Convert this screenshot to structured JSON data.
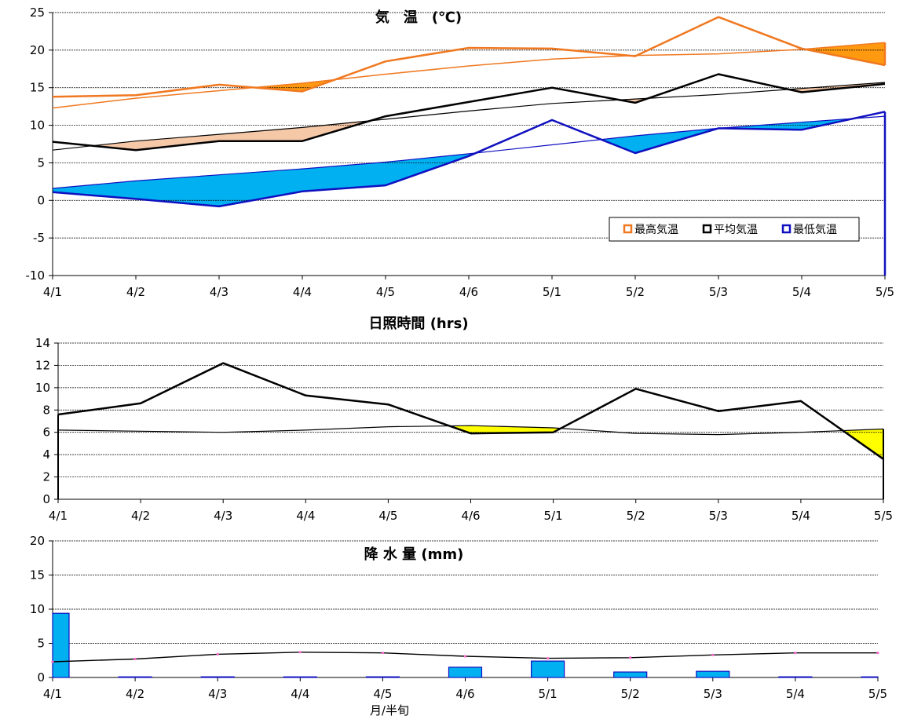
{
  "xaxis_label": "月/半旬",
  "chart_data": [
    {
      "type": "line",
      "title": "気　温　(℃)",
      "categories": [
        "4/1",
        "4/2",
        "4/3",
        "4/4",
        "4/5",
        "4/6",
        "5/1",
        "5/2",
        "5/3",
        "5/4",
        "5/5"
      ],
      "ylim": [
        -10,
        25
      ],
      "yticks": [
        25,
        20,
        15,
        10,
        5,
        0,
        -5,
        -10
      ],
      "grid": true,
      "legend_position": "bottom-right",
      "colors": {
        "max": "#f07820",
        "avg": "#000000",
        "min": "#1010c0",
        "max_fill": "#ff9a10",
        "avg_fill": "#f5c8a8",
        "min_fill": "#00b0f0"
      },
      "series": [
        {
          "name": "最高気温",
          "key": "max",
          "values": [
            13.8,
            14.0,
            15.4,
            14.5,
            18.5,
            20.3,
            20.2,
            19.2,
            24.4,
            20.2,
            18.0
          ]
        },
        {
          "name": "",
          "key": "max_normal",
          "values": [
            12.3,
            13.6,
            14.6,
            15.6,
            16.8,
            17.9,
            18.8,
            19.3,
            19.5,
            20.1,
            21.0
          ]
        },
        {
          "name": "平均気温",
          "key": "avg",
          "values": [
            7.8,
            6.7,
            7.9,
            7.9,
            11.2,
            13.1,
            15.0,
            13.0,
            16.8,
            14.4,
            15.5
          ]
        },
        {
          "name": "",
          "key": "avg_normal",
          "values": [
            6.7,
            7.9,
            8.8,
            9.7,
            10.8,
            11.9,
            12.9,
            13.5,
            14.1,
            14.9,
            15.7
          ]
        },
        {
          "name": "最低気温",
          "key": "min",
          "values": [
            1.1,
            0.2,
            -0.8,
            1.2,
            2.0,
            5.9,
            10.7,
            6.3,
            9.6,
            9.4,
            11.8
          ]
        },
        {
          "name": "",
          "key": "min_normal",
          "values": [
            1.6,
            2.6,
            3.4,
            4.2,
            5.1,
            6.2,
            7.4,
            8.6,
            9.6,
            10.4,
            11.2
          ]
        }
      ]
    },
    {
      "type": "line",
      "title": "日照時間 (hrs)",
      "categories": [
        "4/1",
        "4/2",
        "4/3",
        "4/4",
        "4/5",
        "4/6",
        "5/1",
        "5/2",
        "5/3",
        "5/4",
        "5/5"
      ],
      "ylim": [
        0,
        14
      ],
      "yticks": [
        14,
        12,
        10,
        8,
        6,
        4,
        2,
        0
      ],
      "grid": true,
      "colors": {
        "line": "#000000",
        "fill": "#ffff00"
      },
      "series": [
        {
          "name": "",
          "key": "sun",
          "values": [
            7.6,
            8.6,
            12.2,
            9.3,
            8.5,
            5.9,
            6.0,
            9.9,
            7.9,
            8.8,
            3.6
          ]
        },
        {
          "name": "",
          "key": "sun_normal",
          "values": [
            6.2,
            6.1,
            6.0,
            6.2,
            6.5,
            6.6,
            6.4,
            5.9,
            5.8,
            6.0,
            6.3
          ]
        }
      ]
    },
    {
      "type": "bar",
      "title": "降 水 量 (mm)",
      "categories": [
        "4/1",
        "4/2",
        "4/3",
        "4/4",
        "4/5",
        "4/6",
        "5/1",
        "5/2",
        "5/3",
        "5/4",
        "5/5"
      ],
      "ylim": [
        0,
        20
      ],
      "yticks": [
        20,
        15,
        10,
        5,
        0
      ],
      "grid": true,
      "colors": {
        "bar": "#00b0f0",
        "bar_edge": "#1010c0",
        "normal": "#000000",
        "normal_marker": "#ff66cc"
      },
      "series": [
        {
          "name": "",
          "key": "precip",
          "values": [
            9.4,
            0,
            0.1,
            0,
            0.1,
            1.5,
            2.4,
            0.8,
            0.9,
            0.1,
            0
          ]
        },
        {
          "name": "",
          "key": "precip_normal",
          "values": [
            2.3,
            2.7,
            3.4,
            3.7,
            3.6,
            3.1,
            2.8,
            2.9,
            3.3,
            3.6,
            3.6
          ]
        }
      ]
    }
  ]
}
